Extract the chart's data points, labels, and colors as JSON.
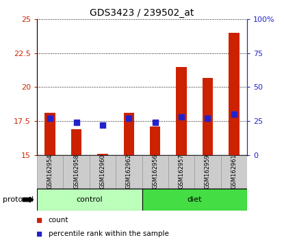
{
  "title": "GDS3423 / 239502_at",
  "samples": [
    "GSM162954",
    "GSM162958",
    "GSM162960",
    "GSM162962",
    "GSM162956",
    "GSM162957",
    "GSM162959",
    "GSM162961"
  ],
  "count_values": [
    18.1,
    16.9,
    15.1,
    18.1,
    17.1,
    21.5,
    20.7,
    24.0
  ],
  "percentile_values": [
    27,
    24,
    22,
    27,
    24,
    28,
    27,
    30
  ],
  "groups": [
    {
      "label": "control",
      "start": 0,
      "end": 4,
      "color": "#bbffbb"
    },
    {
      "label": "diet",
      "start": 4,
      "end": 8,
      "color": "#44dd44"
    }
  ],
  "ylim_left": [
    15,
    25
  ],
  "ylim_right": [
    0,
    100
  ],
  "yticks_left": [
    15,
    17.5,
    20,
    22.5,
    25
  ],
  "yticks_right": [
    0,
    25,
    50,
    75,
    100
  ],
  "ytick_labels_left": [
    "15",
    "17.5",
    "20",
    "22.5",
    "25"
  ],
  "ytick_labels_right": [
    "0",
    "25",
    "50",
    "75",
    "100%"
  ],
  "bar_color": "#cc2200",
  "dot_color": "#2222cc",
  "bar_width": 0.4,
  "dot_size": 40,
  "title_fontsize": 10,
  "protocol_label": "protocol",
  "legend_count": "count",
  "legend_percentile": "percentile rank within the sample",
  "sample_box_color": "#cccccc",
  "sample_box_edge": "#999999"
}
